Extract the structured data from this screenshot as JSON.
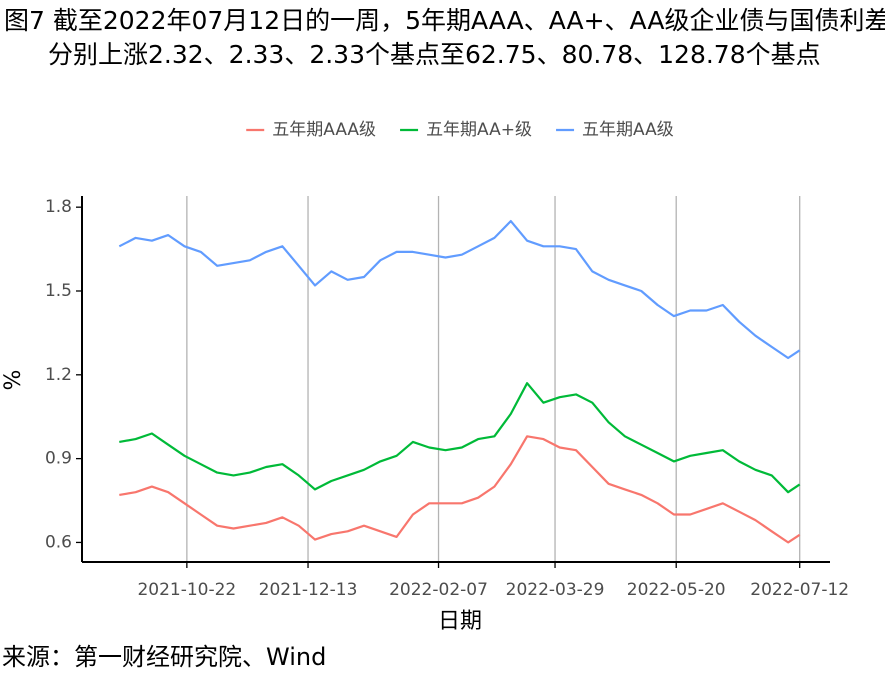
{
  "chart_data": {
    "type": "line",
    "title": "图7  截至2022年07月12日的一周，5年期AAA、AA+、AA级企业债与国债利差分别上涨2.32、2.33、2.33个基点至62.75、80.78、128.78个基点",
    "xlabel": "日期",
    "ylabel": "%",
    "source": "来源：第一财经研究院、Wind",
    "x": [
      "2021-09-23",
      "2021-09-30",
      "2021-10-07",
      "2021-10-14",
      "2021-10-21",
      "2021-10-28",
      "2021-11-04",
      "2021-11-11",
      "2021-11-18",
      "2021-11-25",
      "2021-12-02",
      "2021-12-09",
      "2021-12-16",
      "2021-12-23",
      "2021-12-30",
      "2022-01-06",
      "2022-01-13",
      "2022-01-20",
      "2022-01-27",
      "2022-02-03",
      "2022-02-10",
      "2022-02-17",
      "2022-02-24",
      "2022-03-03",
      "2022-03-10",
      "2022-03-17",
      "2022-03-24",
      "2022-03-31",
      "2022-04-07",
      "2022-04-14",
      "2022-04-21",
      "2022-04-28",
      "2022-05-05",
      "2022-05-12",
      "2022-05-19",
      "2022-05-26",
      "2022-06-02",
      "2022-06-09",
      "2022-06-16",
      "2022-06-23",
      "2022-06-30",
      "2022-07-07",
      "2022-07-12"
    ],
    "series": [
      {
        "name": "五年期AAA级",
        "color": "#F8766D",
        "values": [
          0.77,
          0.78,
          0.8,
          0.78,
          0.74,
          0.7,
          0.66,
          0.65,
          0.66,
          0.67,
          0.69,
          0.66,
          0.61,
          0.63,
          0.64,
          0.66,
          0.64,
          0.62,
          0.7,
          0.74,
          0.74,
          0.74,
          0.76,
          0.8,
          0.88,
          0.98,
          0.97,
          0.94,
          0.93,
          0.87,
          0.81,
          0.79,
          0.77,
          0.74,
          0.7,
          0.7,
          0.72,
          0.74,
          0.71,
          0.68,
          0.64,
          0.6,
          0.6275
        ]
      },
      {
        "name": "五年期AA+级",
        "color": "#00BA38",
        "values": [
          0.96,
          0.97,
          0.99,
          0.95,
          0.91,
          0.88,
          0.85,
          0.84,
          0.85,
          0.87,
          0.88,
          0.84,
          0.79,
          0.82,
          0.84,
          0.86,
          0.89,
          0.91,
          0.96,
          0.94,
          0.93,
          0.94,
          0.97,
          0.98,
          1.06,
          1.17,
          1.1,
          1.12,
          1.13,
          1.1,
          1.03,
          0.98,
          0.95,
          0.92,
          0.89,
          0.91,
          0.92,
          0.93,
          0.89,
          0.86,
          0.84,
          0.78,
          0.8078
        ]
      },
      {
        "name": "五年期AA级",
        "color": "#619CFF",
        "values": [
          1.66,
          1.69,
          1.68,
          1.7,
          1.66,
          1.64,
          1.59,
          1.6,
          1.61,
          1.64,
          1.66,
          1.59,
          1.52,
          1.57,
          1.54,
          1.55,
          1.61,
          1.64,
          1.64,
          1.63,
          1.62,
          1.63,
          1.66,
          1.69,
          1.75,
          1.68,
          1.66,
          1.66,
          1.65,
          1.57,
          1.54,
          1.52,
          1.5,
          1.45,
          1.41,
          1.43,
          1.43,
          1.45,
          1.39,
          1.34,
          1.3,
          1.26,
          1.2878
        ]
      }
    ],
    "xlim": [
      "2021-09-07",
      "2022-07-25"
    ],
    "xticks": [
      "2021-10-22",
      "2021-12-13",
      "2022-02-07",
      "2022-03-29",
      "2022-05-20",
      "2022-07-12"
    ],
    "ylim": [
      0.53,
      1.84
    ],
    "yticks": [
      0.6,
      0.9,
      1.2,
      1.5,
      1.8
    ],
    "grid": "x"
  }
}
